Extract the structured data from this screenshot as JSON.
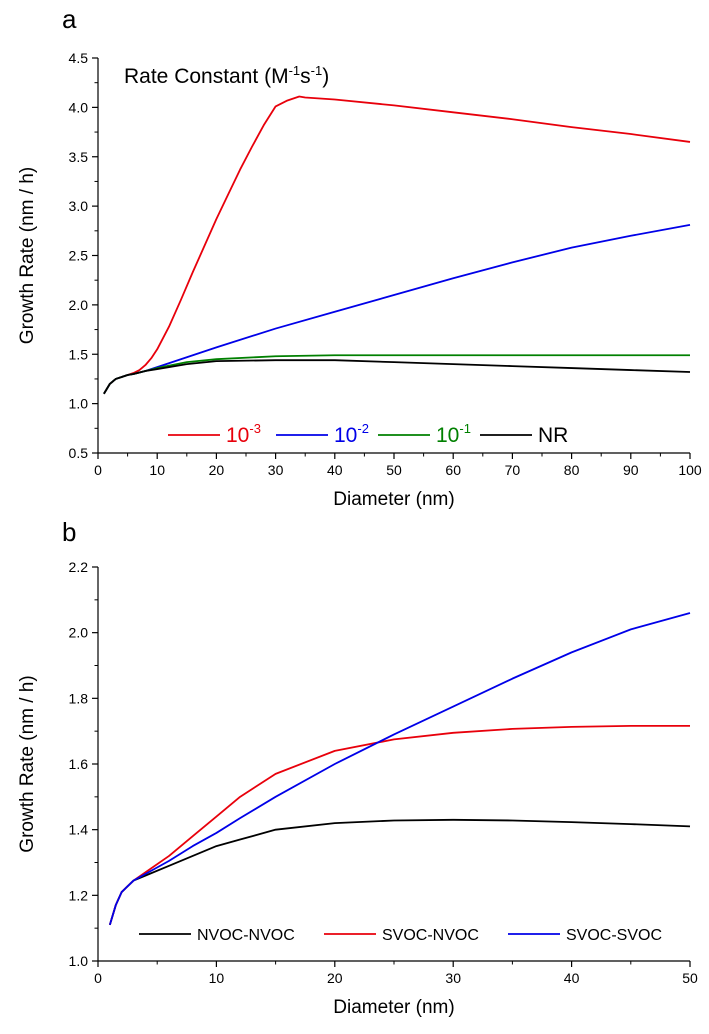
{
  "chart_data": [
    {
      "panel_label": "a",
      "type": "line",
      "xlabel": "Diameter (nm)",
      "ylabel": "Growth Rate (nm / h)",
      "xlim": [
        0,
        100
      ],
      "ylim": [
        0.5,
        4.5
      ],
      "xticks": [
        0,
        10,
        20,
        30,
        40,
        50,
        60,
        70,
        80,
        90,
        100
      ],
      "xtick_labels": [
        "0",
        "10",
        "20",
        "30",
        "40",
        "50",
        "60",
        "70",
        "80",
        "90",
        "100"
      ],
      "yticks": [
        0.5,
        1.0,
        1.5,
        2.0,
        2.5,
        3.0,
        3.5,
        4.0,
        4.5
      ],
      "ytick_labels": [
        "0.5",
        "1.0",
        "1.5",
        "2.0",
        "2.5",
        "3.0",
        "3.5",
        "4.0",
        "4.5"
      ],
      "grid": false,
      "annotation": {
        "base": "Rate Constant (M",
        "sup1": "-1",
        "mid": "s",
        "sup2": "-1",
        "end": ")"
      },
      "legend_position": "bottom",
      "series": [
        {
          "name_base": "10",
          "name_sup": "-3",
          "color": "#e8000b",
          "x": [
            1,
            2,
            3,
            4,
            5,
            6,
            7,
            8,
            9,
            10,
            12,
            14,
            16,
            18,
            20,
            22,
            24,
            26,
            28,
            30,
            32,
            34,
            35,
            40,
            50,
            60,
            70,
            80,
            90,
            100
          ],
          "y": [
            1.1,
            1.2,
            1.25,
            1.27,
            1.29,
            1.31,
            1.34,
            1.39,
            1.46,
            1.55,
            1.78,
            2.05,
            2.33,
            2.6,
            2.87,
            3.12,
            3.37,
            3.6,
            3.82,
            4.01,
            4.07,
            4.11,
            4.1,
            4.08,
            4.02,
            3.95,
            3.88,
            3.8,
            3.73,
            3.65
          ]
        },
        {
          "name_base": "10",
          "name_sup": "-2",
          "color": "#0000e8",
          "x": [
            1,
            2,
            3,
            4,
            5,
            6,
            8,
            10,
            15,
            20,
            30,
            40,
            50,
            60,
            70,
            80,
            90,
            100
          ],
          "y": [
            1.1,
            1.2,
            1.25,
            1.27,
            1.29,
            1.3,
            1.33,
            1.37,
            1.47,
            1.57,
            1.76,
            1.93,
            2.1,
            2.27,
            2.43,
            2.58,
            2.7,
            2.81
          ]
        },
        {
          "name_base": "10",
          "name_sup": "-1",
          "color": "#008000",
          "x": [
            1,
            2,
            3,
            4,
            5,
            6,
            8,
            10,
            15,
            20,
            30,
            40,
            50,
            60,
            70,
            80,
            90,
            100
          ],
          "y": [
            1.1,
            1.2,
            1.25,
            1.27,
            1.29,
            1.3,
            1.33,
            1.36,
            1.42,
            1.45,
            1.48,
            1.49,
            1.49,
            1.49,
            1.49,
            1.49,
            1.49,
            1.49
          ]
        },
        {
          "name_base": "NR",
          "name_sup": "",
          "color": "#000000",
          "x": [
            1,
            2,
            3,
            4,
            5,
            6,
            8,
            10,
            15,
            20,
            30,
            40,
            50,
            60,
            70,
            80,
            90,
            100
          ],
          "y": [
            1.1,
            1.2,
            1.25,
            1.27,
            1.29,
            1.3,
            1.33,
            1.35,
            1.4,
            1.43,
            1.44,
            1.44,
            1.42,
            1.4,
            1.38,
            1.36,
            1.34,
            1.32
          ]
        }
      ]
    },
    {
      "panel_label": "b",
      "type": "line",
      "xlabel": "Diameter (nm)",
      "ylabel": "Growth Rate (nm / h)",
      "xlim": [
        0,
        50
      ],
      "ylim": [
        1.0,
        2.2
      ],
      "xticks": [
        0,
        10,
        20,
        30,
        40,
        50
      ],
      "xtick_labels": [
        "0",
        "10",
        "20",
        "30",
        "40",
        "50"
      ],
      "yticks": [
        1.0,
        1.2,
        1.4,
        1.6,
        1.8,
        2.0,
        2.2
      ],
      "ytick_labels": [
        "1.0",
        "1.2",
        "1.4",
        "1.6",
        "1.8",
        "2.0",
        "2.2"
      ],
      "grid": false,
      "legend_position": "bottom",
      "series": [
        {
          "name_base": "NVOC-NVOC",
          "name_sup": "",
          "color": "#000000",
          "x": [
            1,
            1.5,
            2,
            3,
            4,
            6,
            8,
            10,
            12,
            15,
            20,
            25,
            30,
            35,
            40,
            45,
            50
          ],
          "y": [
            1.11,
            1.17,
            1.21,
            1.245,
            1.26,
            1.29,
            1.32,
            1.35,
            1.37,
            1.4,
            1.42,
            1.428,
            1.43,
            1.428,
            1.423,
            1.417,
            1.41
          ]
        },
        {
          "name_base": "SVOC-NVOC",
          "name_sup": "",
          "color": "#e8000b",
          "x": [
            1,
            1.5,
            2,
            3,
            4,
            6,
            8,
            10,
            12,
            15,
            20,
            25,
            30,
            35,
            40,
            45,
            50
          ],
          "y": [
            1.11,
            1.17,
            1.21,
            1.245,
            1.27,
            1.32,
            1.38,
            1.44,
            1.5,
            1.57,
            1.64,
            1.675,
            1.695,
            1.707,
            1.713,
            1.716,
            1.716
          ]
        },
        {
          "name_base": "SVOC-SVOC",
          "name_sup": "",
          "color": "#0000e8",
          "x": [
            1,
            1.5,
            2,
            3,
            4,
            6,
            8,
            10,
            12,
            15,
            20,
            25,
            30,
            35,
            40,
            45,
            50
          ],
          "y": [
            1.11,
            1.17,
            1.21,
            1.245,
            1.265,
            1.305,
            1.35,
            1.39,
            1.435,
            1.5,
            1.6,
            1.69,
            1.775,
            1.86,
            1.94,
            2.01,
            2.06
          ]
        }
      ]
    }
  ]
}
